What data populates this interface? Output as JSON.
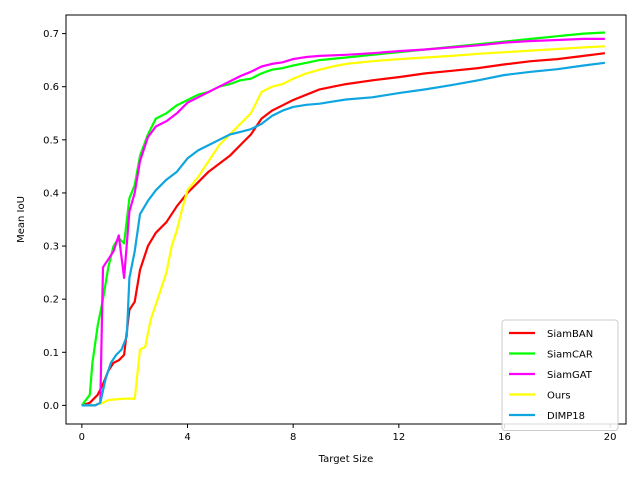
{
  "chart_data": {
    "type": "line",
    "title": "",
    "xlabel": "Target Size",
    "ylabel": "Mean IoU",
    "xlim": [
      -0.6,
      20.6
    ],
    "ylim": [
      -0.035,
      0.735
    ],
    "xticks": [
      0,
      4,
      8,
      12,
      16,
      20
    ],
    "yticks": [
      0.0,
      0.1,
      0.2,
      0.3,
      0.4,
      0.5,
      0.6,
      0.7
    ],
    "ytick_labels": [
      "0.0",
      "0.1",
      "0.2",
      "0.3",
      "0.4",
      "0.5",
      "0.6",
      "0.7"
    ],
    "grid": false,
    "legend_position": "lower-right",
    "series": [
      {
        "name": "SiamBAN",
        "color": "#ff0000",
        "x": [
          0,
          0.3,
          0.6,
          0.8,
          1.0,
          1.2,
          1.4,
          1.6,
          1.8,
          2.0,
          2.2,
          2.5,
          2.8,
          3.2,
          3.6,
          4.0,
          4.4,
          4.8,
          5.2,
          5.6,
          6.0,
          6.4,
          6.8,
          7.2,
          7.6,
          8.0,
          8.5,
          9.0,
          9.5,
          10.0,
          11.0,
          12.0,
          13.0,
          14.0,
          15.0,
          16.0,
          17.0,
          18.0,
          19.0,
          19.8
        ],
        "y": [
          0,
          0.005,
          0.02,
          0.04,
          0.065,
          0.08,
          0.085,
          0.095,
          0.18,
          0.195,
          0.255,
          0.3,
          0.325,
          0.345,
          0.375,
          0.4,
          0.42,
          0.44,
          0.455,
          0.47,
          0.49,
          0.51,
          0.54,
          0.555,
          0.565,
          0.575,
          0.585,
          0.595,
          0.6,
          0.605,
          0.612,
          0.618,
          0.625,
          0.63,
          0.635,
          0.642,
          0.648,
          0.652,
          0.658,
          0.663
        ]
      },
      {
        "name": "SiamCAR",
        "color": "#00ff00",
        "x": [
          0,
          0.3,
          0.4,
          0.6,
          0.8,
          1.0,
          1.2,
          1.4,
          1.6,
          1.8,
          2.0,
          2.2,
          2.5,
          2.8,
          3.2,
          3.6,
          4.0,
          4.4,
          4.8,
          5.2,
          5.6,
          6.0,
          6.4,
          6.8,
          7.2,
          7.6,
          8.0,
          8.5,
          9.0,
          10.0,
          11.0,
          12.0,
          13.0,
          14.0,
          15.0,
          16.0,
          17.0,
          18.0,
          19.0,
          19.8
        ],
        "y": [
          0,
          0.02,
          0.08,
          0.15,
          0.2,
          0.26,
          0.3,
          0.315,
          0.305,
          0.39,
          0.415,
          0.47,
          0.51,
          0.54,
          0.55,
          0.565,
          0.575,
          0.585,
          0.59,
          0.6,
          0.605,
          0.612,
          0.615,
          0.625,
          0.632,
          0.635,
          0.64,
          0.645,
          0.65,
          0.655,
          0.66,
          0.665,
          0.67,
          0.675,
          0.68,
          0.685,
          0.69,
          0.695,
          0.7,
          0.702
        ]
      },
      {
        "name": "SiamGAT",
        "color": "#ff00ff",
        "x": [
          0,
          0.5,
          0.7,
          0.8,
          1.0,
          1.2,
          1.4,
          1.6,
          1.8,
          2.0,
          2.2,
          2.5,
          2.8,
          3.2,
          3.6,
          4.0,
          4.4,
          4.8,
          5.2,
          5.6,
          6.0,
          6.4,
          6.8,
          7.2,
          7.6,
          8.0,
          8.5,
          9.0,
          10.0,
          11.0,
          12.0,
          13.0,
          14.0,
          15.0,
          16.0,
          17.0,
          18.0,
          19.0,
          19.8
        ],
        "y": [
          0,
          0,
          0.005,
          0.26,
          0.275,
          0.29,
          0.32,
          0.24,
          0.365,
          0.4,
          0.46,
          0.505,
          0.525,
          0.535,
          0.55,
          0.57,
          0.58,
          0.59,
          0.6,
          0.61,
          0.62,
          0.628,
          0.638,
          0.643,
          0.646,
          0.652,
          0.656,
          0.658,
          0.66,
          0.663,
          0.667,
          0.67,
          0.674,
          0.678,
          0.683,
          0.686,
          0.688,
          0.69,
          0.69
        ]
      },
      {
        "name": "Ours",
        "color": "#ffff00",
        "x": [
          0,
          0.4,
          0.6,
          0.8,
          1.0,
          1.4,
          1.8,
          2.0,
          2.2,
          2.4,
          2.6,
          2.8,
          3.0,
          3.2,
          3.4,
          3.6,
          3.8,
          4.0,
          4.4,
          4.8,
          5.2,
          5.6,
          6.0,
          6.4,
          6.8,
          7.2,
          7.6,
          8.0,
          8.5,
          9.0,
          9.5,
          10.0,
          11.0,
          12.0,
          13.0,
          14.0,
          15.0,
          16.0,
          17.0,
          18.0,
          19.0,
          19.8
        ],
        "y": [
          0,
          0,
          0.002,
          0.005,
          0.01,
          0.012,
          0.013,
          0.012,
          0.105,
          0.11,
          0.16,
          0.19,
          0.22,
          0.25,
          0.3,
          0.33,
          0.37,
          0.405,
          0.43,
          0.46,
          0.49,
          0.51,
          0.53,
          0.55,
          0.59,
          0.6,
          0.605,
          0.615,
          0.625,
          0.632,
          0.638,
          0.643,
          0.648,
          0.652,
          0.655,
          0.658,
          0.662,
          0.665,
          0.668,
          0.671,
          0.674,
          0.676
        ]
      },
      {
        "name": "DIMP18",
        "color": "#0ea5e0",
        "x": [
          0,
          0.5,
          0.7,
          0.9,
          1.1,
          1.3,
          1.5,
          1.7,
          1.8,
          2.0,
          2.2,
          2.5,
          2.8,
          3.2,
          3.6,
          4.0,
          4.4,
          4.8,
          5.2,
          5.6,
          6.0,
          6.4,
          6.8,
          7.2,
          7.6,
          8.0,
          8.5,
          9.0,
          9.5,
          10.0,
          11.0,
          12.0,
          13.0,
          14.0,
          15.0,
          16.0,
          17.0,
          18.0,
          19.0,
          19.8
        ],
        "y": [
          0,
          0,
          0.005,
          0.05,
          0.08,
          0.095,
          0.105,
          0.13,
          0.24,
          0.29,
          0.36,
          0.385,
          0.405,
          0.425,
          0.44,
          0.465,
          0.48,
          0.49,
          0.5,
          0.51,
          0.515,
          0.52,
          0.53,
          0.545,
          0.555,
          0.562,
          0.566,
          0.568,
          0.572,
          0.576,
          0.58,
          0.588,
          0.595,
          0.603,
          0.612,
          0.622,
          0.628,
          0.633,
          0.64,
          0.645
        ]
      }
    ]
  }
}
